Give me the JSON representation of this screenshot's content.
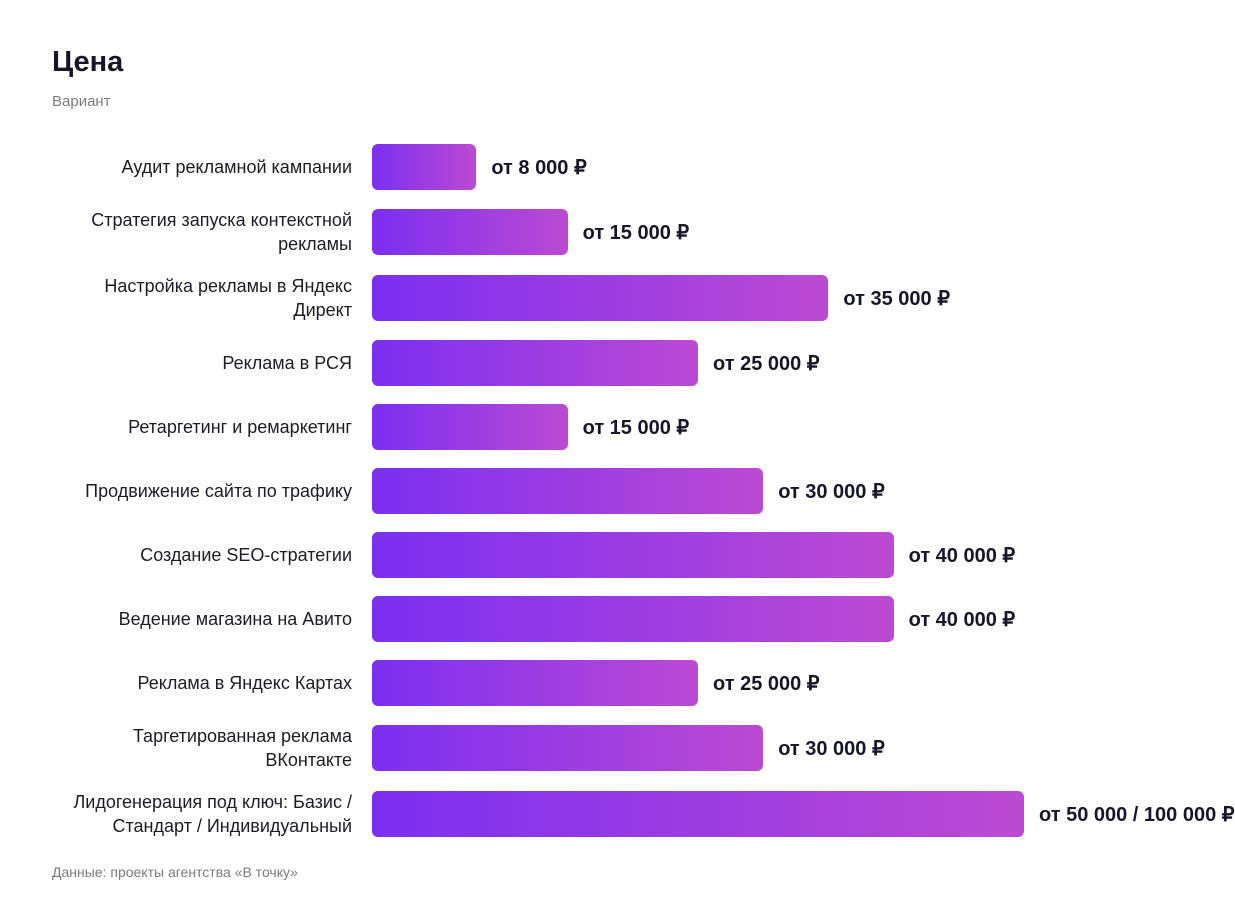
{
  "chart_data": {
    "type": "bar",
    "orientation": "horizontal",
    "title": "Цена",
    "subtitle": "Вариант",
    "categories": [
      "Аудит рекламной кампании",
      "Стратегия запуска контекстной рекламы",
      "Настройка рекламы в Яндекс Директ",
      "Реклама в РСЯ",
      "Ретаргетинг и ремаркетинг",
      "Продвижение сайта по трафику",
      "Создание SEO-стратегии",
      "Ведение магазина на Авито",
      "Реклама в Яндекс Картах",
      "Таргетированная реклама ВКонтакте",
      "Лидогенерация под ключ: Базис / Стандарт / Индивидуальный"
    ],
    "values": [
      8000,
      15000,
      35000,
      25000,
      15000,
      30000,
      40000,
      40000,
      25000,
      30000,
      50000
    ],
    "value_labels": [
      "от 8 000 ₽",
      "от 15 000 ₽",
      "от 35 000 ₽",
      "от 25 000 ₽",
      "от 15 000 ₽",
      "от 30 000 ₽",
      "от 40 000 ₽",
      "от 40 000 ₽",
      "от 25 000 ₽",
      "от 30 000 ₽",
      "от 50 000 / 100 000 ₽"
    ],
    "color": [
      "#7b2ff0",
      "#bb4ad2"
    ],
    "xlim": [
      0,
      50000
    ],
    "source": "Данные: проекты агентства «В точку»"
  }
}
